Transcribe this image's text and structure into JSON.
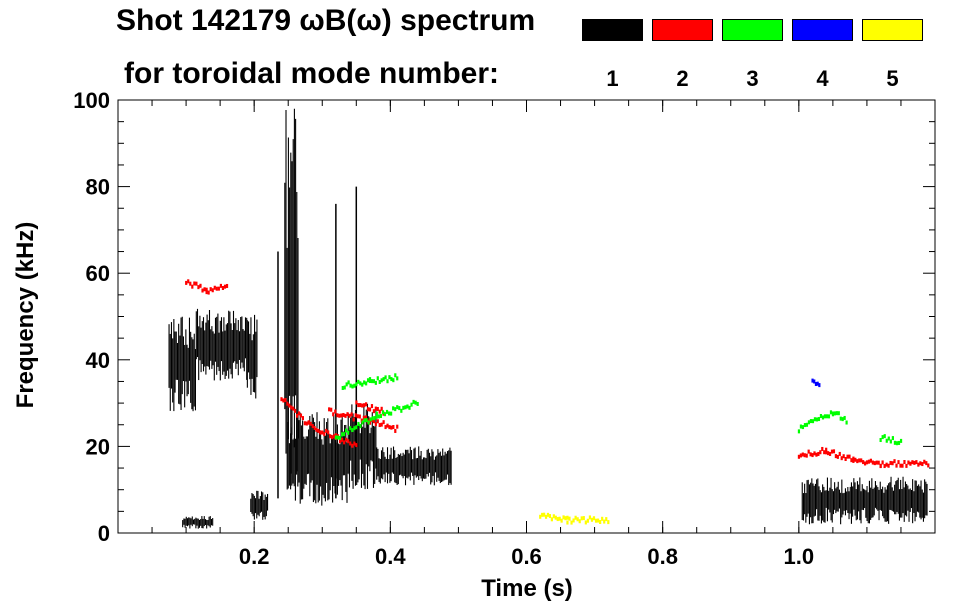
{
  "chart_data": {
    "type": "scatter",
    "title": "Shot 142179 ωB(ω) spectrum",
    "subtitle": "for toroidal mode number:",
    "xlabel": "Time (s)",
    "ylabel": "Frequency (kHz)",
    "xlim": [
      0.0,
      1.2
    ],
    "ylim": [
      0,
      100
    ],
    "x_ticks": [
      {
        "value": 0.2,
        "label": "0.2"
      },
      {
        "value": 0.4,
        "label": "0.4"
      },
      {
        "value": 0.6,
        "label": "0.6"
      },
      {
        "value": 0.8,
        "label": "0.8"
      },
      {
        "value": 1.0,
        "label": "1.0"
      }
    ],
    "y_ticks": [
      {
        "value": 0,
        "label": "0"
      },
      {
        "value": 20,
        "label": "20"
      },
      {
        "value": 40,
        "label": "40"
      },
      {
        "value": 60,
        "label": "60"
      },
      {
        "value": 80,
        "label": "80"
      },
      {
        "value": 100,
        "label": "100"
      }
    ],
    "grid": false,
    "legend_placement": "top-right",
    "legend": [
      {
        "mode": "1",
        "color": "#000000"
      },
      {
        "mode": "2",
        "color": "#ff0000"
      },
      {
        "mode": "3",
        "color": "#00ff00"
      },
      {
        "mode": "4",
        "color": "#0000ff"
      },
      {
        "mode": "5",
        "color": "#ffff00"
      }
    ],
    "series": [
      {
        "mode": "1",
        "color": "#000000",
        "regions": [
          {
            "t": [
              0.075,
              0.115
            ],
            "f": [
              28,
              50
            ]
          },
          {
            "t": [
              0.115,
              0.19
            ],
            "f": [
              35,
              52
            ]
          },
          {
            "t": [
              0.095,
              0.14
            ],
            "f": [
              1,
              4
            ]
          },
          {
            "t": [
              0.19,
              0.205
            ],
            "f": [
              30,
              52
            ]
          },
          {
            "t": [
              0.195,
              0.22
            ],
            "f": [
              3,
              10
            ]
          },
          {
            "t": [
              0.245,
              0.265
            ],
            "f": [
              2,
              100
            ]
          },
          {
            "t": [
              0.25,
              0.34
            ],
            "f": [
              6,
              28
            ]
          },
          {
            "t": [
              0.34,
              0.38
            ],
            "f": [
              10,
              30
            ]
          },
          {
            "t": [
              0.38,
              0.49
            ],
            "f": [
              11,
              20
            ]
          },
          {
            "t": [
              1.005,
              1.19
            ],
            "f": [
              2,
              13
            ]
          }
        ],
        "lines": [
          {
            "t": 0.235,
            "f": [
              8,
              65
            ]
          },
          {
            "t": 0.35,
            "f": [
              20,
              80
            ]
          },
          {
            "t": 0.32,
            "f": [
              8,
              76
            ]
          }
        ]
      },
      {
        "mode": "2",
        "color": "#ff0000",
        "tracks": [
          [
            [
              0.1,
              58
            ],
            [
              0.13,
              56
            ],
            [
              0.16,
              57
            ]
          ],
          [
            [
              0.24,
              31
            ],
            [
              0.28,
              25
            ],
            [
              0.32,
              22
            ],
            [
              0.35,
              20
            ]
          ],
          [
            [
              0.31,
              28
            ],
            [
              0.37,
              26
            ],
            [
              0.41,
              24
            ]
          ],
          [
            [
              0.35,
              30
            ],
            [
              0.39,
              28
            ]
          ],
          [
            [
              1.0,
              18
            ],
            [
              1.04,
              19
            ],
            [
              1.08,
              17
            ],
            [
              1.12,
              16
            ],
            [
              1.19,
              16
            ]
          ]
        ]
      },
      {
        "mode": "3",
        "color": "#00ff00",
        "tracks": [
          [
            [
              0.33,
              34
            ],
            [
              0.37,
              35
            ],
            [
              0.41,
              36
            ]
          ],
          [
            [
              0.32,
              22
            ],
            [
              0.38,
              27
            ],
            [
              0.44,
              30
            ]
          ],
          [
            [
              1.0,
              24
            ],
            [
              1.05,
              28
            ],
            [
              1.07,
              26
            ]
          ],
          [
            [
              1.12,
              22
            ],
            [
              1.15,
              21
            ]
          ]
        ]
      },
      {
        "mode": "4",
        "color": "#0000ff",
        "tracks": [
          [
            [
              1.02,
              35
            ],
            [
              1.03,
              34
            ]
          ]
        ]
      },
      {
        "mode": "5",
        "color": "#ffff00",
        "tracks": [
          [
            [
              0.62,
              4
            ],
            [
              0.66,
              3
            ],
            [
              0.72,
              3
            ]
          ]
        ]
      }
    ]
  }
}
